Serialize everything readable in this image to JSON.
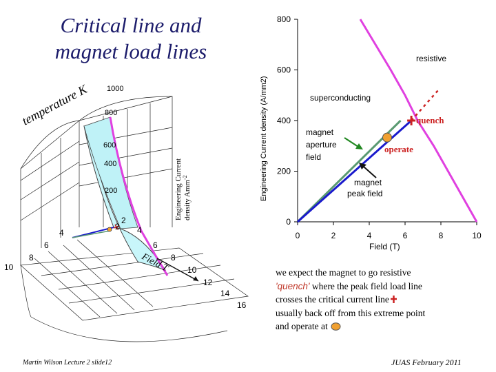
{
  "title": {
    "line1": "Critical line and",
    "line2": "magnet load lines"
  },
  "surface3d": {
    "temperature_axis_label": "temperature K",
    "temperature_ticks": [
      "2",
      "4",
      "6",
      "8",
      "10"
    ],
    "field_axis_label": "Field T",
    "field_ticks": [
      "2",
      "4",
      "6",
      "8",
      "10",
      "12",
      "14",
      "16"
    ],
    "current_axis_label_line1": "Engineering Current",
    "current_axis_label_line2": "density Amm",
    "current_axis_label_sup": "-2",
    "current_ticks": [
      "200",
      "400",
      "600",
      "800",
      "1000"
    ]
  },
  "chart_data": {
    "type": "line",
    "xlabel": "Field  (T)",
    "ylabel": "Engineering Current density (A/mm2)",
    "xlim": [
      0,
      10
    ],
    "ylim": [
      0,
      800
    ],
    "x_ticks": [
      "0",
      "2",
      "4",
      "6",
      "8",
      "10"
    ],
    "y_ticks": [
      "0",
      "200",
      "400",
      "600",
      "800"
    ],
    "series": [
      {
        "name": "critical line",
        "color": "#e040e0",
        "points": [
          [
            3.5,
            800
          ],
          [
            5.2,
            600
          ],
          [
            6.0,
            500
          ],
          [
            6.7,
            400
          ],
          [
            7.6,
            300
          ],
          [
            8.4,
            200
          ],
          [
            9.2,
            100
          ],
          [
            10,
            0
          ]
        ]
      },
      {
        "name": "magnet aperture field",
        "color": "#5a9a72",
        "points": [
          [
            0,
            0
          ],
          [
            5.75,
            400
          ]
        ]
      },
      {
        "name": "magnet peak field",
        "color": "#1a1acc",
        "points": [
          [
            0,
            0
          ],
          [
            6.35,
            400
          ]
        ]
      },
      {
        "name": "extension",
        "color": "#cc2222",
        "points": [
          [
            6.35,
            400
          ],
          [
            7.85,
            520
          ]
        ]
      }
    ],
    "annotations": {
      "resistive": "resistive",
      "superconducting": "superconducting",
      "quench": "quench",
      "operate": "operate",
      "magnet_aperture_field": [
        "magnet",
        "aperture",
        "field"
      ],
      "magnet_peak_field": [
        "magnet",
        "peak field"
      ]
    },
    "points_of_interest": {
      "quench_point": [
        6.35,
        400
      ],
      "operate_point": [
        5.0,
        333
      ]
    }
  },
  "note": {
    "line1": "we expect the magnet to go resistive",
    "quench_word": "'quench'",
    "line2_rest": " where the peak field load line",
    "line3": "crosses the critical current line",
    "line4": "usually back off from this extreme point",
    "line5": "and operate at"
  },
  "footer": {
    "left": "Martin Wilson Lecture 2 slide12",
    "right": "JUAS February 2011"
  },
  "colors": {
    "critical": "#e040e0",
    "aperture": "#5a9a72",
    "peak": "#1a1acc",
    "quench": "#cc2222",
    "operate": "#f0a030",
    "surface": "#c8f6fa"
  }
}
